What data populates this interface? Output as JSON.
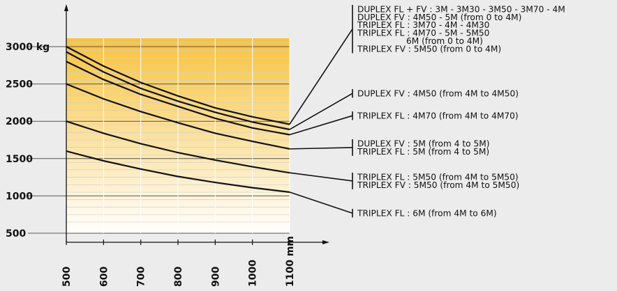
{
  "chart_data": {
    "type": "line",
    "x": [
      500,
      600,
      700,
      800,
      900,
      1000,
      1100
    ],
    "x_tick_labels": [
      "500",
      "600",
      "700",
      "800",
      "900",
      "1000",
      "1100 mm"
    ],
    "y_tick_labels": [
      "3000 kg",
      "2500",
      "2000",
      "1500",
      "1000",
      "500"
    ],
    "y_ticks": [
      3000,
      2500,
      2000,
      1500,
      1000,
      500
    ],
    "xlim": [
      500,
      1100
    ],
    "ylim": [
      500,
      3100
    ],
    "grid": true,
    "background_gradient": [
      "#f9c33a",
      "#ffffff"
    ],
    "series": [
      {
        "values": [
          3000,
          2740,
          2520,
          2340,
          2180,
          2060,
          1960
        ]
      },
      {
        "values": [
          2930,
          2660,
          2440,
          2270,
          2120,
          1990,
          1890
        ]
      },
      {
        "values": [
          2800,
          2560,
          2360,
          2200,
          2040,
          1910,
          1820
        ]
      },
      {
        "values": [
          2500,
          2300,
          2130,
          1980,
          1840,
          1730,
          1630
        ]
      },
      {
        "values": [
          2000,
          1840,
          1700,
          1580,
          1480,
          1390,
          1310
        ]
      },
      {
        "values": [
          1600,
          1470,
          1360,
          1260,
          1180,
          1110,
          1050
        ]
      }
    ],
    "legend_groups": [
      {
        "lines": [
          "DUPLEX FL + FV : 3M - 3M30 - 3M50 - 3M70 - 4M",
          "DUPLEX FV :  4M50 - 5M (from 0 to 4M)",
          "TRIPLEX FL : 3M70 - 4M - 4M30",
          "TRIPLEX FL : 4M70 - 5M - 5M50",
          "6M (from 0 to 4M)",
          "TRIPLEX FV : 5M50 (from 0 to 4M)"
        ]
      },
      {
        "lines": [
          "DUPLEX FV :  4M50 (from 4M to 4M50)"
        ]
      },
      {
        "lines": [
          "TRIPLEX FL :  4M70 (from 4M to 4M70)"
        ]
      },
      {
        "lines": [
          "DUPLEX FV :  5M (from 4 to 5M)",
          "TRIPLEX FL :  5M (from 4 to 5M)"
        ]
      },
      {
        "lines": [
          "TRIPLEX FL :  5M50 (from 4M to 5M50)",
          "TRIPLEX FV :  5M50 (from 4M to 5M50)"
        ]
      },
      {
        "lines": [
          "TRIPLEX FL :  6M (from 4M to 6M)"
        ]
      }
    ]
  }
}
